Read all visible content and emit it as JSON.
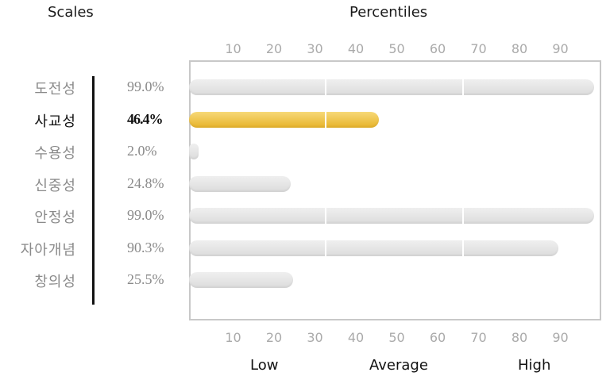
{
  "header": {
    "scales": "Scales",
    "percentiles": "Percentiles"
  },
  "chart_data": {
    "type": "bar",
    "orientation": "horizontal",
    "title": "Percentiles",
    "categories": [
      "도전성",
      "사교성",
      "수용성",
      "신중성",
      "안정성",
      "자아개념",
      "창의성"
    ],
    "values": [
      99.0,
      46.4,
      2.0,
      24.8,
      99.0,
      90.3,
      25.5
    ],
    "value_labels": [
      "99.0%",
      "46.4%",
      "2.0%",
      "24.8%",
      "99.0%",
      "90.3%",
      "25.5%"
    ],
    "highlight_index": 1,
    "xlim": [
      0,
      100
    ],
    "x_ticks": [
      "10",
      "20",
      "30",
      "40",
      "50",
      "60",
      "70",
      "80",
      "90"
    ],
    "x_tick_values": [
      10,
      20,
      30,
      40,
      50,
      60,
      70,
      80,
      90
    ],
    "band_boundaries": [
      33.3,
      66.7
    ],
    "bands": [
      "Low",
      "Average",
      "High"
    ],
    "colors": {
      "highlight": "#ECC240",
      "bar": "#E3E3E3",
      "frame": "#C8C8C8"
    }
  }
}
